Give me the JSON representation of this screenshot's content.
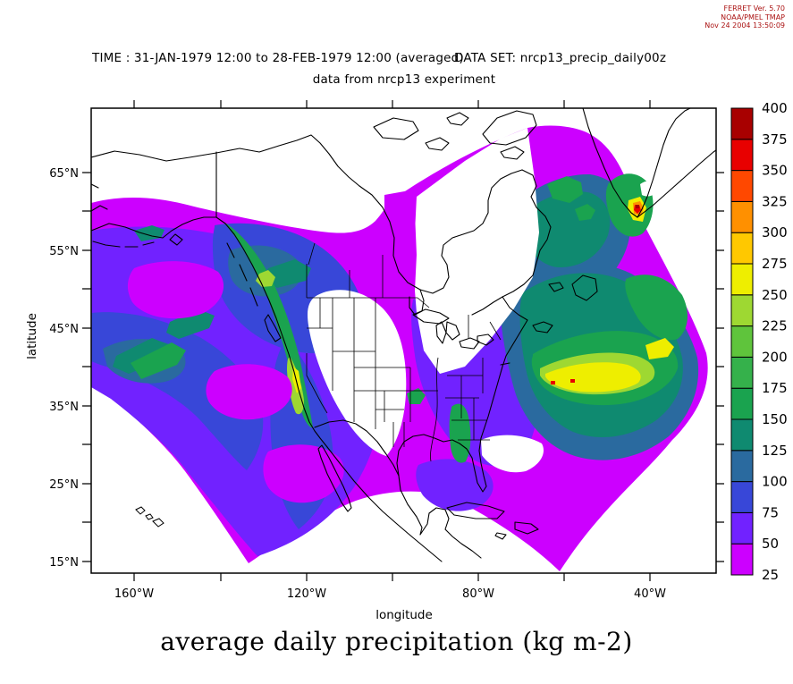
{
  "stamp": {
    "lines": [
      "FERRET Ver. 5.70",
      "NOAA/PMEL TMAP",
      "Nov 24 2004 13:50:09"
    ],
    "color": "#aa1111"
  },
  "header": {
    "time_line": "TIME : 31-JAN-1979 12:00 to 28-FEB-1979 12:00 (averaged)",
    "dataset_line": "DATA SET: nrcp13_precip_daily00z",
    "subtitle": "data from nrcp13 experiment"
  },
  "chart_data": {
    "type": "heatmap",
    "title": "average daily precipitation (kg m-2)",
    "subtitle": "data from nrcp13 experiment",
    "time_range": "31-JAN-1979 12:00 to 28-FEB-1979 12:00 (averaged)",
    "dataset": "nrcp13_precip_daily00z",
    "x_axis": {
      "label": "longitude",
      "tick_labels": [
        "160°W",
        "120°W",
        "80°W",
        "40°W"
      ],
      "minor_tick_step_deg": 20,
      "range": [
        "172°W",
        "23°W"
      ]
    },
    "y_axis": {
      "label": "latitude",
      "tick_labels": [
        "65°N",
        "55°N",
        "45°N",
        "35°N",
        "25°N",
        "15°N"
      ],
      "minor_tick_step_deg": 5,
      "range": [
        "13.5°N",
        "73.5°N"
      ]
    },
    "colorbar": {
      "units": "kg m-2",
      "levels": [
        25,
        50,
        75,
        100,
        125,
        150,
        175,
        200,
        225,
        250,
        275,
        300,
        325,
        350,
        375,
        400
      ],
      "colors": [
        "#cc00ff",
        "#7122ff",
        "#3847d8",
        "#2a6a9f",
        "#0f8a70",
        "#1aa34f",
        "#35b14b",
        "#5fc43c",
        "#9ed832",
        "#eeee00",
        "#ffc800",
        "#ff9000",
        "#ff4800",
        "#e80000",
        "#a80000"
      ],
      "below_min_color": "#ffffff"
    },
    "projection_note": "Lambert-conformal model grid plotted on latitude/longitude axes, giving a fan-shaped data region",
    "features": [
      {
        "region": "Pacific Northwest / British Columbia coastal band",
        "approx_value_range": [
          150,
          275
        ]
      },
      {
        "region": "Sierra Nevada / northern California coast streak",
        "approx_value_range": [
          200,
          275
        ]
      },
      {
        "region": "North Atlantic storm track near 40N, 45-75W",
        "approx_value_range": [
          200,
          300
        ]
      },
      {
        "region": "Southeast Greenland tip hotspot",
        "approx_value_range": [
          325,
          400
        ]
      },
      {
        "region": "Labrador Sea",
        "approx_value_range": [
          150,
          225
        ]
      },
      {
        "region": "Appalachians / eastern United States",
        "approx_value_range": [
          100,
          175
        ]
      },
      {
        "region": "Northeast Pacific storm track",
        "approx_value_range": [
          50,
          150
        ]
      },
      {
        "region": "Subtropical east Pacific, Gulf of Mexico, subtropical west Atlantic",
        "approx_value_range": [
          25,
          75
        ]
      },
      {
        "region": "Central North America, northern Canada, subtropical highs",
        "approx_value_range": [
          0,
          25
        ],
        "rendering": "white (below lowest contour level)"
      }
    ]
  }
}
